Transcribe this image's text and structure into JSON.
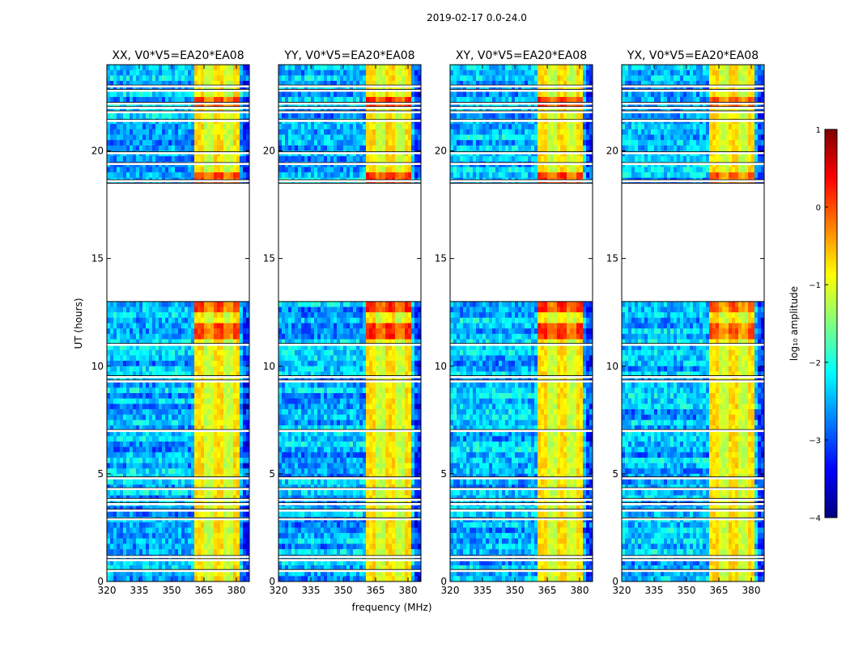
{
  "chart_data": {
    "type": "heatmap",
    "suptitle": "2019-02-17 0.0-24.0",
    "xlabel": "frequency (MHz)",
    "ylabel": "UT (hours)",
    "xlim": [
      320,
      386
    ],
    "ylim": [
      0,
      24
    ],
    "xticks": [
      "320",
      "335",
      "350",
      "365",
      "380"
    ],
    "yticks": [
      "0",
      "5",
      "10",
      "15",
      "20"
    ],
    "colorbar": {
      "label": "log₁₀ amplitude",
      "range": [
        -4,
        1
      ],
      "ticks": [
        "1",
        "0",
        "−1",
        "−2",
        "−3",
        "−4"
      ],
      "colormap": "jet"
    },
    "panels": [
      {
        "title": "XX, V0*V5=EA20*EA08",
        "level": 0.8
      },
      {
        "title": "YY, V0*V5=EA20*EA08",
        "level": 0.95
      },
      {
        "title": "XY, V0*V5=EA20*EA08",
        "level": 0.9
      },
      {
        "title": "YX, V0*V5=EA20*EA08",
        "level": 0.7
      }
    ],
    "rfi_band_MHz": [
      361,
      381
    ],
    "data_gap_hours": [
      13.0,
      18.5
    ],
    "blank_rows_hours": [
      0.5,
      1.0,
      1.15,
      2.9,
      3.3,
      3.6,
      3.8,
      4.3,
      4.8,
      7.0,
      9.3,
      9.5,
      11.0,
      18.6,
      19.4,
      19.9,
      21.4,
      21.8,
      22.0,
      22.2,
      22.8,
      23.0
    ],
    "background_level_log10": -2.5,
    "band_level_log10": -0.8
  }
}
